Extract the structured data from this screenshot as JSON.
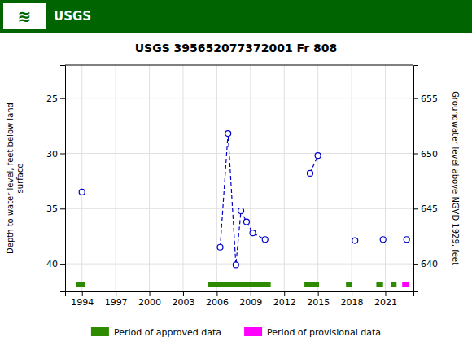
{
  "chart_data": {
    "type": "line",
    "title": "USGS 395652077372001 Fr 808",
    "annotations": [
      "≋",
      "USGS"
    ],
    "ylabel": "Depth to water level, feet below land\nsurface",
    "y2label": "Groundwater level above NGVD 1929, feet",
    "xlim": [
      1992.5,
      2023.5
    ],
    "xticks": [
      1994,
      1997,
      2000,
      2003,
      2006,
      2009,
      2012,
      2015,
      2018,
      2021
    ],
    "ylim": [
      42.5,
      22.0
    ],
    "yticks": [
      25,
      30,
      35,
      40
    ],
    "y2lim": [
      637.5,
      658.0
    ],
    "y2ticks": [
      655,
      650,
      645,
      640
    ],
    "grid": true,
    "legend": "bottom",
    "series": [
      {
        "type": "line",
        "color": "#0000CC",
        "marker": "circle",
        "line_style": "dashed",
        "x": [
          2006.3,
          2007.0,
          2007.7,
          2008.15,
          2008.65,
          2009.2,
          2010.3
        ],
        "values": [
          38.5,
          28.2,
          40.1,
          35.2,
          36.2,
          37.2,
          37.8
        ]
      },
      {
        "type": "line",
        "color": "#0000CC",
        "marker": "circle",
        "line_style": "dashed",
        "x": [
          2014.3,
          2015.0
        ],
        "values": [
          31.8,
          30.2
        ]
      },
      {
        "type": "scatter",
        "color": "#0000CC",
        "marker": "circle",
        "x": [
          1994.0,
          2018.3,
          2020.8,
          2022.9
        ],
        "values": [
          33.5,
          37.9,
          37.8,
          37.8
        ]
      },
      {
        "type": "range",
        "name": "Period of approved data",
        "color": "#2e8b00",
        "y": 41.9,
        "ranges": [
          [
            1993.5,
            1994.3
          ],
          [
            2005.2,
            2010.8
          ],
          [
            2013.8,
            2015.1
          ],
          [
            2017.5,
            2018.0
          ],
          [
            2020.2,
            2020.8
          ],
          [
            2021.5,
            2022.0
          ]
        ]
      },
      {
        "type": "range",
        "name": "Period of provisional data",
        "color": "#ff00ff",
        "y": 41.9,
        "ranges": [
          [
            2022.5,
            2023.1
          ]
        ]
      }
    ]
  }
}
